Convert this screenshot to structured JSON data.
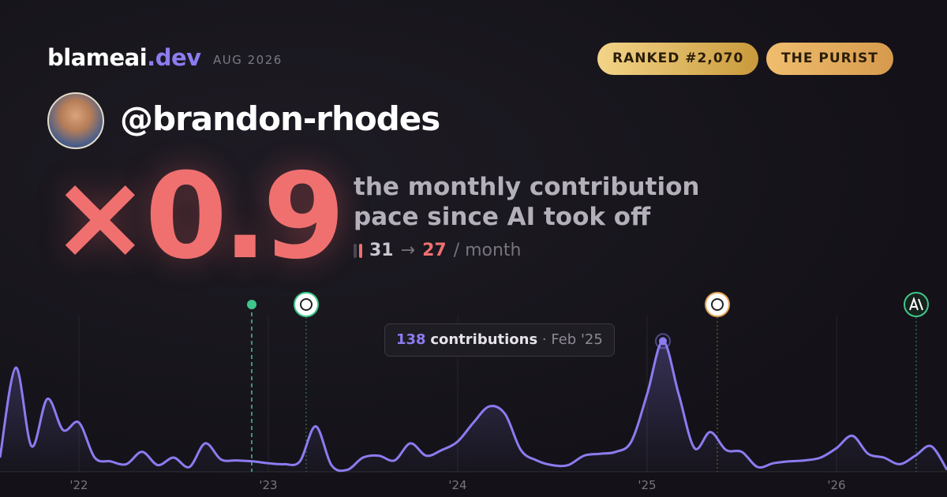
{
  "header": {
    "brand": "blameai",
    "tld": ".dev",
    "date": "AUG 2026",
    "rank": "RANKED #2,070",
    "persona": "THE PURIST"
  },
  "profile": {
    "handle": "@brandon-rhodes"
  },
  "stat": {
    "multiplier": "×0.9",
    "line1": "the monthly contribution",
    "line2": "pace since AI took off",
    "before": 31,
    "arrow": "→",
    "after": 27,
    "unit": "/ month"
  },
  "chart": {
    "type": "area",
    "color": "#8b7cf0",
    "categories": [
      null,
      null,
      null,
      null,
      null,
      "'22",
      null,
      null,
      null,
      null,
      null,
      null,
      null,
      null,
      null,
      null,
      null,
      "'23",
      null,
      null,
      null,
      null,
      null,
      null,
      null,
      null,
      null,
      null,
      null,
      "'24",
      null,
      null,
      null,
      null,
      null,
      null,
      null,
      null,
      null,
      null,
      null,
      "'25",
      null,
      null,
      null,
      null,
      null,
      null,
      null,
      null,
      null,
      null,
      null,
      "'26",
      null,
      null,
      null,
      null,
      null,
      null,
      null
    ],
    "values": [
      15,
      110,
      27,
      77,
      44,
      52,
      15,
      11,
      8,
      21,
      7,
      15,
      5,
      30,
      13,
      12,
      11,
      9,
      8,
      11,
      48,
      7,
      2,
      15,
      17,
      12,
      30,
      17,
      23,
      32,
      52,
      69,
      61,
      23,
      12,
      7,
      7,
      17,
      19,
      21,
      32,
      82,
      138,
      82,
      25,
      42,
      23,
      21,
      5,
      9,
      11,
      12,
      15,
      25,
      38,
      19,
      15,
      8,
      17,
      27,
      2
    ],
    "ylim": [
      0,
      165
    ],
    "tooltip": {
      "value": 138,
      "label": "contributions",
      "date": "Feb '25"
    }
  }
}
